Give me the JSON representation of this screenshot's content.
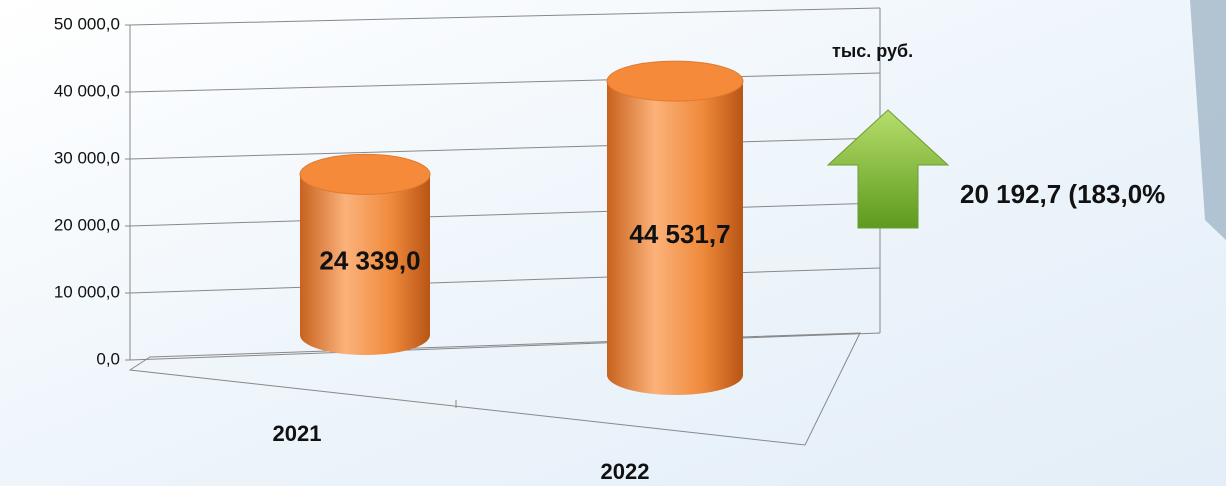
{
  "chart_data": {
    "type": "bar",
    "categories": [
      "2021",
      "2022"
    ],
    "values": [
      24339.0,
      44531.7
    ],
    "value_labels": [
      "24 339,0",
      "44 531,7"
    ],
    "color": "#f79646",
    "ylim": [
      0,
      50000
    ],
    "yticks": [
      {
        "value": 0,
        "label": "0,0"
      },
      {
        "value": 10000,
        "label": "10 000,0"
      },
      {
        "value": 20000,
        "label": "20 000,0"
      },
      {
        "value": 30000,
        "label": "30 000,0"
      },
      {
        "value": 40000,
        "label": "40 000,0"
      },
      {
        "value": 50000,
        "label": "50 000,0"
      }
    ],
    "grid": true,
    "unit_label": "тыс. руб.",
    "annotation": "20 192,7 (183,0%"
  }
}
